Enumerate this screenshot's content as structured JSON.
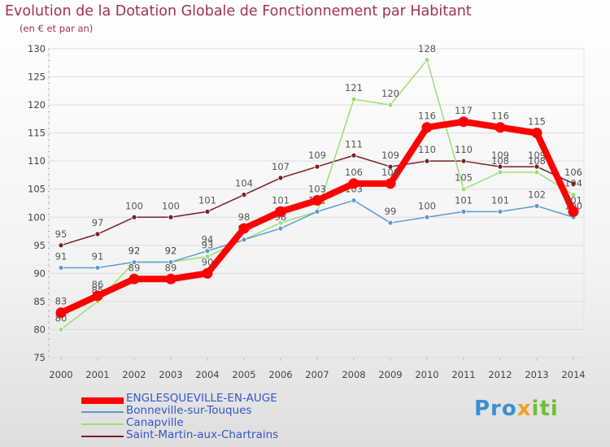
{
  "header": {
    "title": "Evolution de la Dotation Globale de Fonctionnement par Habitant",
    "subtitle": "(en € et par an)"
  },
  "logo": {
    "p1": "Pro",
    "p2": "x",
    "p3": "iti"
  },
  "colors": {
    "axis_text": "#444444",
    "grid": "#dddddd",
    "axis_marks": "#dd3333"
  },
  "chart_data": {
    "type": "line",
    "title": "Evolution de la Dotation Globale de Fonctionnement par Habitant",
    "subtitle": "(en € et par an)",
    "xlabel": "",
    "ylabel": "",
    "ylim": [
      75,
      130
    ],
    "yticks": [
      75,
      80,
      85,
      90,
      95,
      100,
      105,
      110,
      115,
      120,
      125,
      130
    ],
    "x": [
      2000,
      2001,
      2002,
      2003,
      2004,
      2005,
      2006,
      2007,
      2008,
      2009,
      2010,
      2011,
      2012,
      2013,
      2014
    ],
    "legend_position": "bottom-left",
    "series": [
      {
        "name": "Saint-Martin-aux-Chartrains",
        "color": "#7a1f24",
        "values": [
          95,
          97,
          100,
          100,
          101,
          104,
          107,
          109,
          111,
          109,
          110,
          110,
          109,
          109,
          106
        ]
      },
      {
        "name": "Canapville",
        "color": "#99e070",
        "values": [
          80,
          85,
          92,
          92,
          93,
          96,
          99,
          101,
          121,
          120,
          128,
          105,
          108,
          108,
          104
        ]
      },
      {
        "name": "Bonneville-sur-Touques",
        "color": "#5b9bd5",
        "values": [
          91,
          91,
          92,
          92,
          94,
          96,
          98,
          101,
          103,
          99,
          100,
          101,
          101,
          102,
          100
        ]
      },
      {
        "name": "ENGLESQUEVILLE-EN-AUGE",
        "color": "#ff0000",
        "values": [
          83,
          86,
          89,
          89,
          90,
          98,
          101,
          103,
          106,
          106,
          116,
          117,
          116,
          115,
          101
        ]
      }
    ]
  },
  "legend": {
    "items": [
      {
        "label": "ENGLESQUEVILLE-EN-AUGE",
        "color": "#ff0000"
      },
      {
        "label": "Bonneville-sur-Touques",
        "color": "#5b9bd5"
      },
      {
        "label": "Canapville",
        "color": "#99e070"
      },
      {
        "label": "Saint-Martin-aux-Chartrains",
        "color": "#7a1f24"
      }
    ]
  }
}
